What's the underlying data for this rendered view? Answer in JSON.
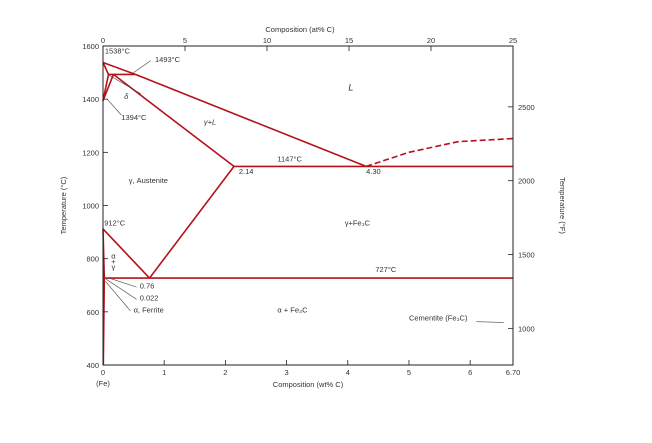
{
  "chart_data": {
    "type": "phase-diagram",
    "title": "",
    "x_bottom": {
      "label": "Composition (wt% C)",
      "range": [
        0,
        6.7
      ],
      "ticks": [
        "0",
        "1",
        "2",
        "3",
        "4",
        "5",
        "6",
        "6.70"
      ],
      "left_note": "(Fe)"
    },
    "x_top": {
      "label": "Composition (at% C)",
      "range": [
        0,
        25
      ],
      "ticks": [
        "0",
        "5",
        "10",
        "15",
        "20",
        "25"
      ]
    },
    "y_left": {
      "label": "Temperature (°C)",
      "range": [
        400,
        1600
      ],
      "ticks": [
        "400",
        "600",
        "800",
        "1000",
        "1200",
        "1400",
        "1600"
      ]
    },
    "y_right": {
      "label": "Temperature (°F)",
      "ticks": [
        "1000",
        "1500",
        "2000",
        "2500"
      ],
      "tick_values_C": [
        537.8,
        815.6,
        1093.3,
        1371.1
      ]
    },
    "phase_lines": [
      {
        "name": "liquidus-delta",
        "points": [
          [
            0,
            1538
          ],
          [
            0.53,
            1493
          ]
        ]
      },
      {
        "name": "liquidus-austenite",
        "points": [
          [
            0.53,
            1493
          ],
          [
            4.3,
            1147
          ]
        ]
      },
      {
        "name": "liquidus-cementite",
        "dashed": true,
        "points": [
          [
            4.3,
            1147
          ],
          [
            5.0,
            1200
          ],
          [
            5.8,
            1240
          ],
          [
            6.7,
            1252
          ]
        ]
      },
      {
        "name": "solidus-delta",
        "points": [
          [
            0,
            1538
          ],
          [
            0.09,
            1493
          ]
        ]
      },
      {
        "name": "peritectic-line",
        "points": [
          [
            0.09,
            1493
          ],
          [
            0.53,
            1493
          ]
        ]
      },
      {
        "name": "solidus-austenite",
        "points": [
          [
            0.17,
            1493
          ],
          [
            2.14,
            1147
          ]
        ]
      },
      {
        "name": "delta-gamma-left",
        "points": [
          [
            0,
            1394
          ],
          [
            0.09,
            1493
          ]
        ]
      },
      {
        "name": "delta-gamma-right",
        "points": [
          [
            0,
            1394
          ],
          [
            0.17,
            1493
          ]
        ]
      },
      {
        "name": "eutectic-line",
        "points": [
          [
            2.14,
            1147
          ],
          [
            6.7,
            1147
          ]
        ]
      },
      {
        "name": "acm-line",
        "points": [
          [
            2.14,
            1147
          ],
          [
            0.76,
            727
          ]
        ]
      },
      {
        "name": "a3-line",
        "points": [
          [
            0,
            912
          ],
          [
            0.76,
            727
          ]
        ]
      },
      {
        "name": "alpha-gamma-boundary",
        "points": [
          [
            0,
            912
          ],
          [
            0.022,
            727
          ]
        ]
      },
      {
        "name": "eutectoid-line",
        "points": [
          [
            0.022,
            727
          ],
          [
            6.7,
            727
          ]
        ]
      },
      {
        "name": "ferrite-solvus",
        "points": [
          [
            0.022,
            727
          ],
          [
            0.005,
            400
          ]
        ]
      }
    ],
    "annotations": [
      {
        "text": "1538°C",
        "x": 0.03,
        "y": 1572
      },
      {
        "text": "1493°C",
        "x": 0.85,
        "y": 1540
      },
      {
        "text": "δ",
        "x": 0.38,
        "y": 1400
      },
      {
        "text": "1394°C",
        "x": 0.3,
        "y": 1322
      },
      {
        "text": "γ+L",
        "x": 1.75,
        "y": 1305
      },
      {
        "text": "L",
        "x": 4.05,
        "y": 1432
      },
      {
        "text": "1147°C",
        "x": 2.85,
        "y": 1165
      },
      {
        "text": "2.14",
        "x": 2.22,
        "y": 1118
      },
      {
        "text": "4.30",
        "x": 4.3,
        "y": 1118
      },
      {
        "text": "γ, Austenite",
        "x": 0.42,
        "y": 1085
      },
      {
        "text": "912°C",
        "x": 0.02,
        "y": 925
      },
      {
        "text": "γ+Fe₃C",
        "x": 3.95,
        "y": 925
      },
      {
        "text": "α",
        "x": 0.17,
        "y": 800
      },
      {
        "text": "+",
        "x": 0.17,
        "y": 780
      },
      {
        "text": "γ",
        "x": 0.17,
        "y": 760
      },
      {
        "text": "727°C",
        "x": 4.45,
        "y": 750
      },
      {
        "text": "0.76",
        "x": 0.6,
        "y": 688
      },
      {
        "text": "0.022",
        "x": 0.6,
        "y": 643
      },
      {
        "text": "α, Ferrite",
        "x": 0.5,
        "y": 598
      },
      {
        "text": "α + Fe₃C",
        "x": 2.85,
        "y": 598
      },
      {
        "text": "Cementite (Fe₃C)",
        "x": 5.0,
        "y": 568
      }
    ],
    "colors": {
      "phase_line": "#b5121b",
      "axis": "#222222",
      "text": "#333333"
    },
    "grid": false
  }
}
